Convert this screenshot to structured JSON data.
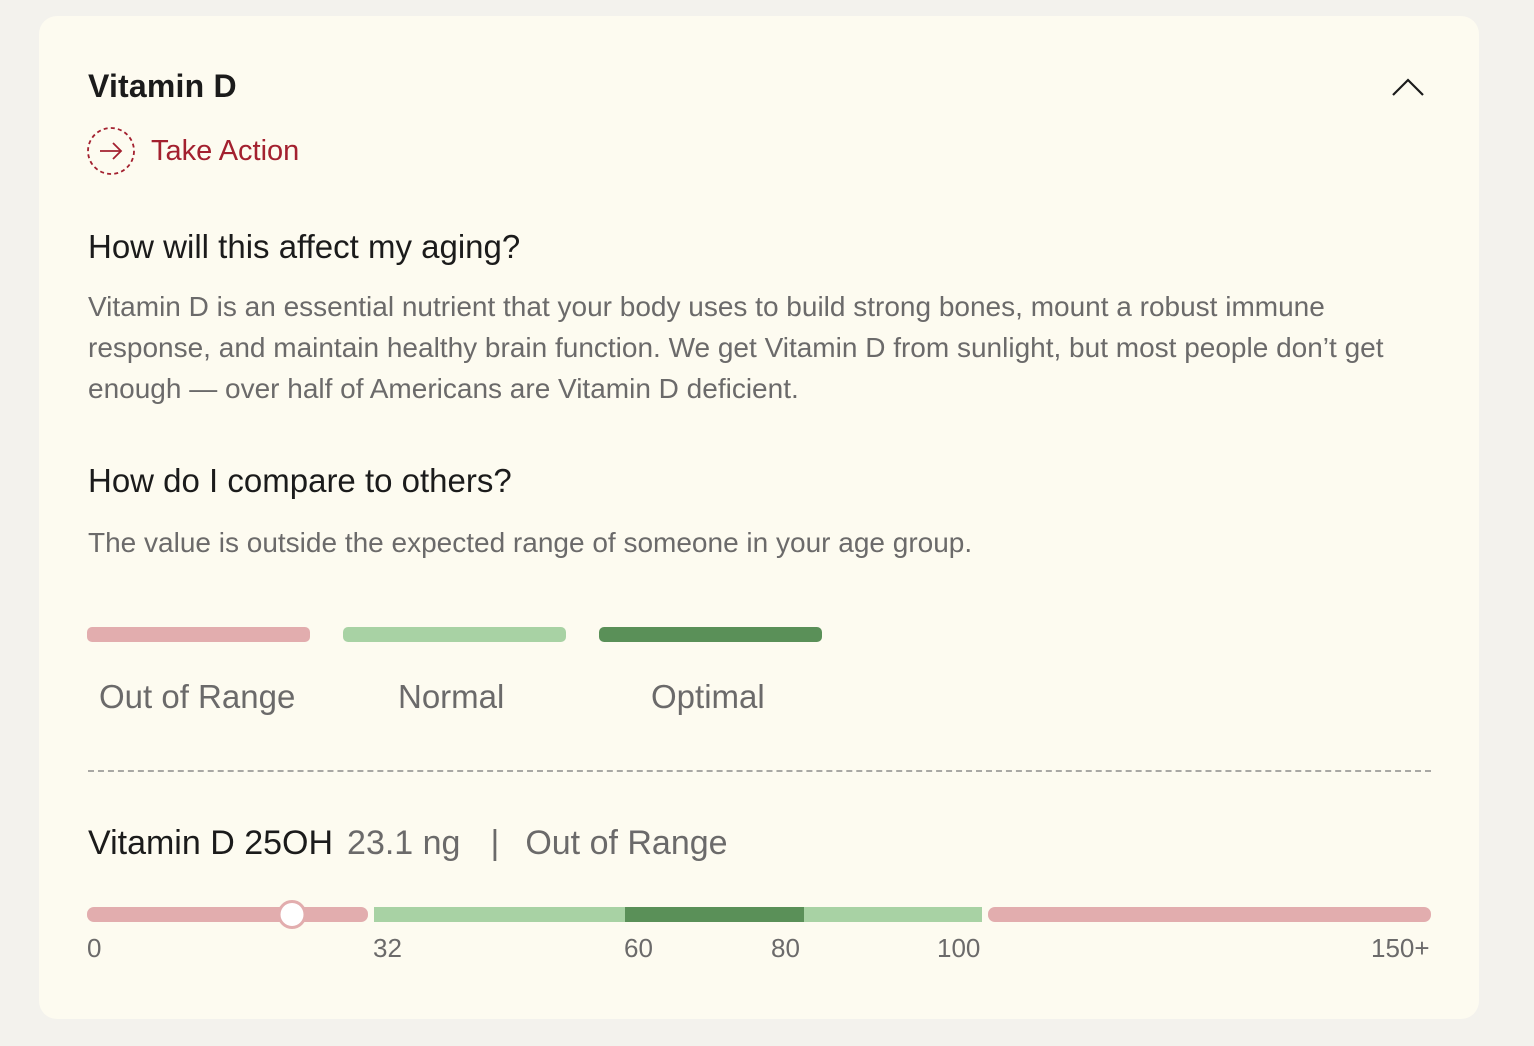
{
  "biomarker": {
    "title": "Vitamin D",
    "take_action_label": "Take Action"
  },
  "aging_section": {
    "heading": "How will this affect my aging?",
    "body": "Vitamin D is an essential nutrient that your body uses to build strong bones, mount a robust immune response, and maintain healthy brain function. We get Vitamin D from sunlight, but most people don’t get enough — over half of Americans are Vitamin D deficient."
  },
  "compare_section": {
    "heading": "How do I compare to others?",
    "body": "The value is outside the expected range of someone in your age group."
  },
  "legend": [
    {
      "label": "Out of Range",
      "color": "#e2adae"
    },
    {
      "label": "Normal",
      "color": "#a8d2a4"
    },
    {
      "label": "Optimal",
      "color": "#5a9058"
    }
  ],
  "result": {
    "marker_name": "Vitamin D 25OH",
    "value": 23.1,
    "value_text": "23.1 ng",
    "separator": "|",
    "status": "Out of Range"
  },
  "range_scale": {
    "ticks": [
      "0",
      "32",
      "60",
      "80",
      "100",
      "150+"
    ],
    "segments": [
      {
        "from": 0,
        "to": 32,
        "status": "Out of Range",
        "color": "#e2adae"
      },
      {
        "from": 32,
        "to": 60,
        "status": "Normal",
        "color": "#a8d2a4"
      },
      {
        "from": 60,
        "to": 80,
        "status": "Optimal",
        "color": "#5a9058"
      },
      {
        "from": 80,
        "to": 100,
        "status": "Normal",
        "color": "#a8d2a4"
      },
      {
        "from": 100,
        "to": 150,
        "status": "Out of Range",
        "color": "#e2adae"
      }
    ]
  },
  "colors": {
    "accent_red": "#a3202f",
    "text_dark": "#1b1b1b",
    "text_muted": "#6b6a6a",
    "card_bg": "#fdfbf0"
  },
  "icons": {
    "collapse": "chevron-up-icon",
    "take_action": "arrow-right-circle-icon"
  }
}
